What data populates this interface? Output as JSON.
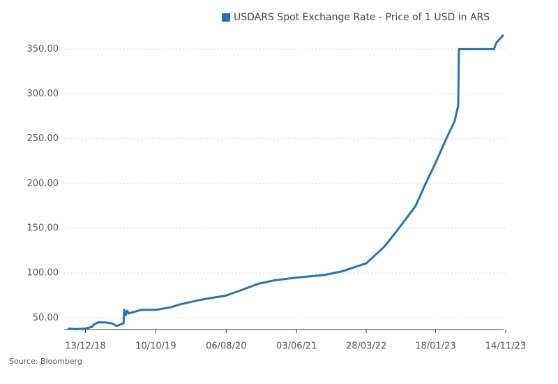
{
  "chart_data": {
    "type": "line",
    "legend": "top-right",
    "series": [
      {
        "name": "USDARS Spot Exchange Rate - Price of 1 USD in ARS",
        "color": "#2673b0",
        "values": [
          38,
          37.5,
          38,
          40,
          43,
          45,
          45,
          44,
          41,
          43,
          44,
          59,
          53,
          58,
          55,
          59,
          59,
          62,
          65,
          70,
          75,
          82,
          88,
          92,
          95,
          98,
          102,
          111,
          130,
          152,
          175,
          199,
          223,
          250,
          270,
          287,
          350,
          350,
          357,
          366
        ]
      }
    ],
    "x": [
      "2018-09-28",
      "2018-11-05",
      "2018-12-13",
      "2019-01-10",
      "2019-01-20",
      "2019-02-05",
      "2019-03-05",
      "2019-04-05",
      "2019-04-25",
      "2019-05-15",
      "2019-05-25",
      "2019-05-28",
      "2019-06-03",
      "2019-06-10",
      "2019-06-15",
      "2019-08-09",
      "2019-10-10",
      "2019-12-15",
      "2020-01-20",
      "2020-04-15",
      "2020-08-06",
      "2020-10-20",
      "2020-12-20",
      "2021-03-01",
      "2021-06-03",
      "2021-10-01",
      "2021-12-15",
      "2022-03-28",
      "2022-06-15",
      "2022-08-20",
      "2022-10-25",
      "2022-12-05",
      "2023-01-18",
      "2023-03-05",
      "2023-04-10",
      "2023-04-25",
      "2023-04-28",
      "2023-09-25",
      "2023-10-05",
      "2023-11-05"
    ],
    "xlim": [
      "2018-09-28",
      "2023-11-20"
    ],
    "xticks": [
      {
        "value": "2018-12-13",
        "label": "13/12/18"
      },
      {
        "value": "2019-10-10",
        "label": "10/10/19"
      },
      {
        "value": "2020-08-06",
        "label": "06/08/20"
      },
      {
        "value": "2021-06-03",
        "label": "03/06/21"
      },
      {
        "value": "2022-03-28",
        "label": "28/03/22"
      },
      {
        "value": "2023-01-18",
        "label": "18/01/23"
      },
      {
        "value": "2023-11-14",
        "label": "14/11/23"
      }
    ],
    "ylim": [
      37,
      369
    ],
    "yticks": [
      {
        "value": 50,
        "label": "50.00"
      },
      {
        "value": 100,
        "label": "100.00"
      },
      {
        "value": 150,
        "label": "150.00"
      },
      {
        "value": 200,
        "label": "200.00"
      },
      {
        "value": 250,
        "label": "250.00"
      },
      {
        "value": 300,
        "label": "300.00"
      },
      {
        "value": 350,
        "label": "350.00"
      }
    ],
    "grid": true,
    "source": "Source: Bloomberg"
  }
}
